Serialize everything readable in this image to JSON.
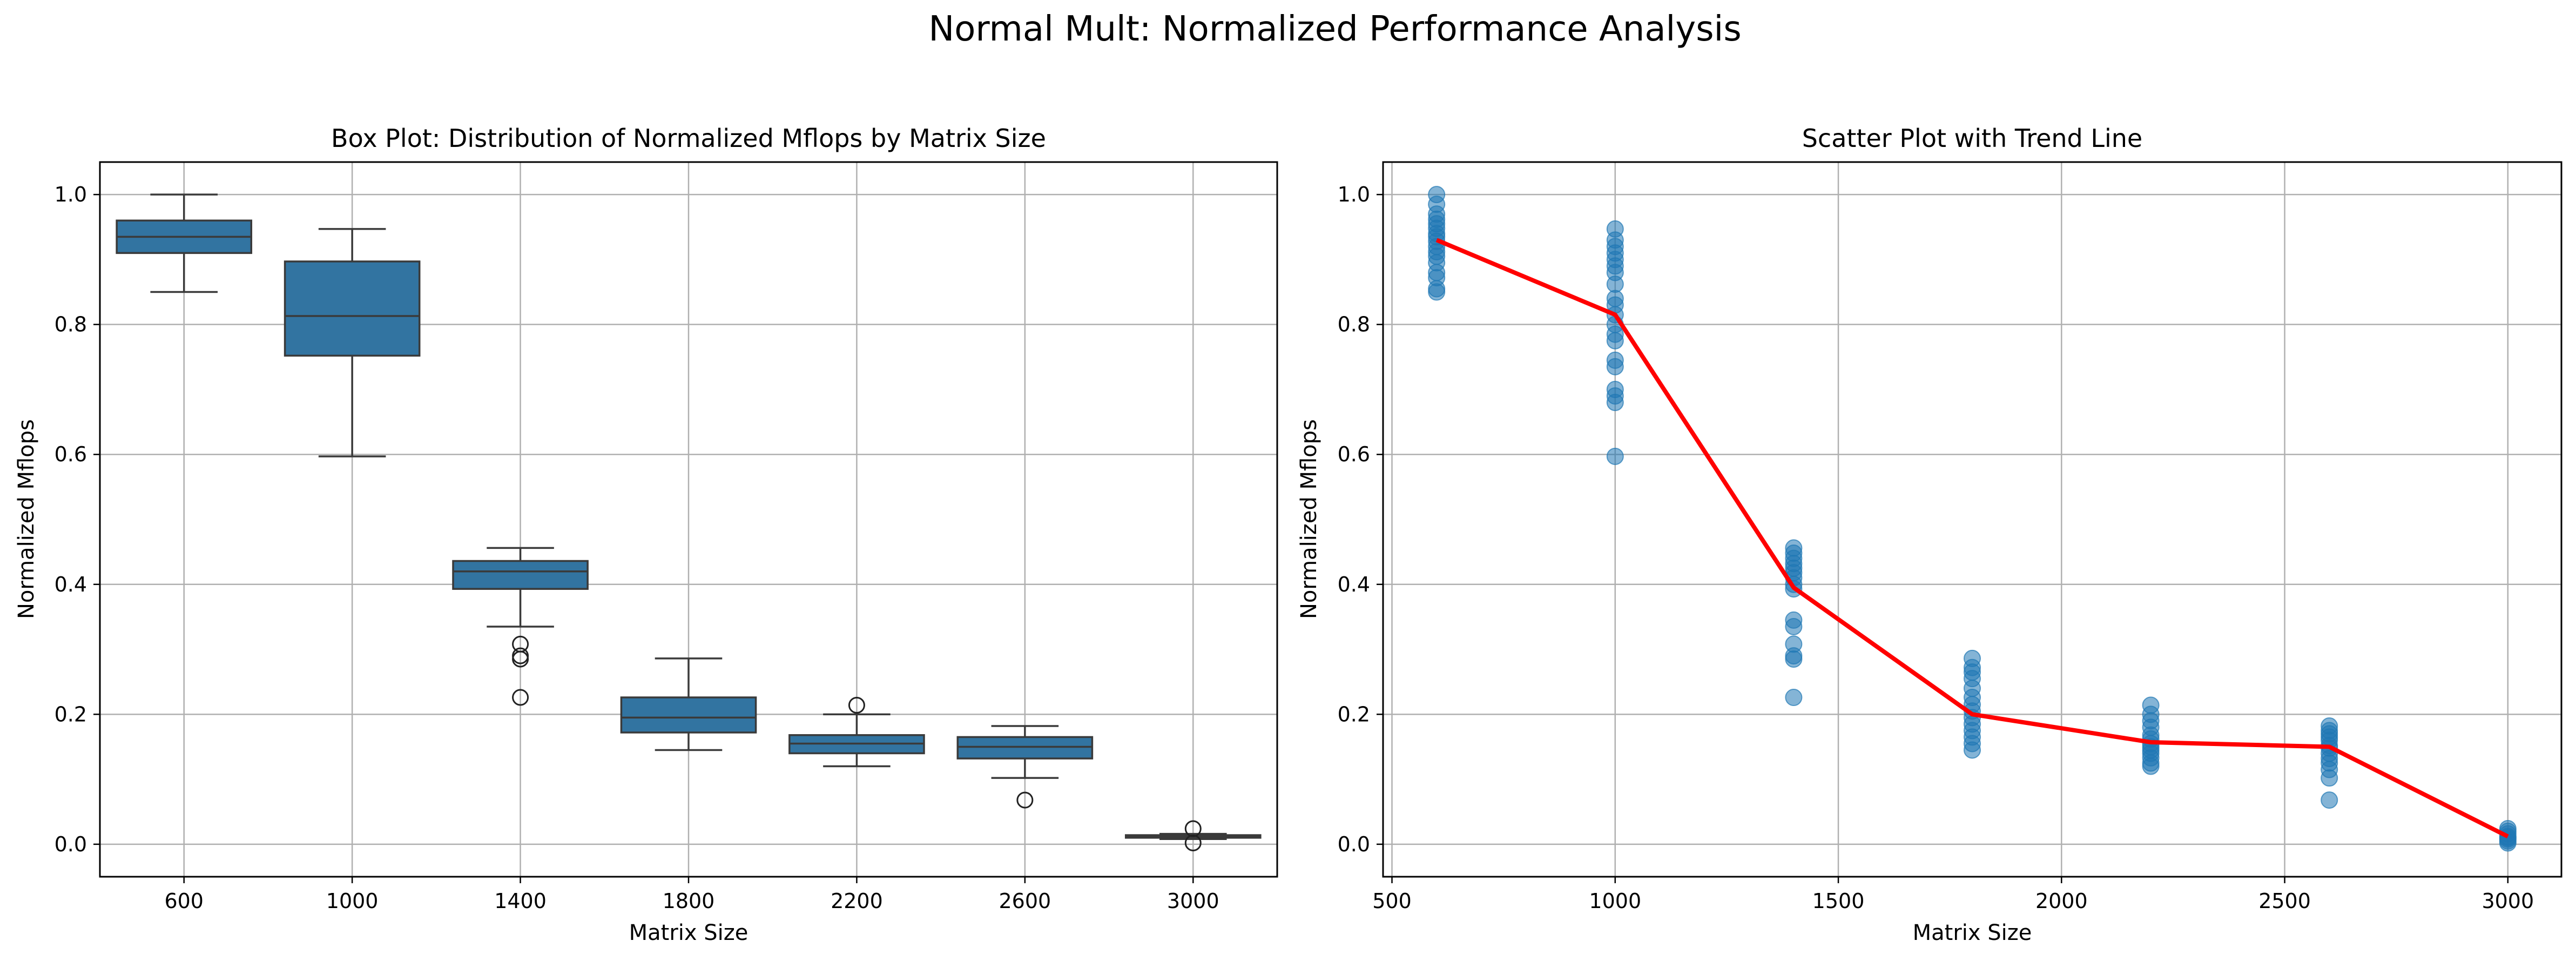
{
  "suptitle": "Normal Mult: Normalized Performance Analysis",
  "colors": {
    "box_fill": "#3274a1",
    "box_line": "#3a3a3a",
    "scatter_point": "#1f77b4",
    "trend_line": "#ff0000",
    "grid": "#b0b0b0"
  },
  "chart_data": [
    {
      "type": "box",
      "title": "Box Plot: Distribution of Normalized Mflops by Matrix Size",
      "xlabel": "Matrix Size",
      "ylabel": "Normalized Mflops",
      "ylim": [
        -0.05,
        1.05
      ],
      "yticks": [
        "0.0",
        "0.2",
        "0.4",
        "0.6",
        "0.8",
        "1.0"
      ],
      "grid": true,
      "categories": [
        "600",
        "1000",
        "1400",
        "1800",
        "2200",
        "2600",
        "3000"
      ],
      "boxes": [
        {
          "category": "600",
          "whisker_low": 0.85,
          "q1": 0.91,
          "median": 0.935,
          "q3": 0.96,
          "whisker_high": 1.0,
          "outliers": []
        },
        {
          "category": "1000",
          "whisker_low": 0.597,
          "q1": 0.752,
          "median": 0.813,
          "q3": 0.897,
          "whisker_high": 0.947,
          "outliers": []
        },
        {
          "category": "1400",
          "whisker_low": 0.335,
          "q1": 0.393,
          "median": 0.42,
          "q3": 0.436,
          "whisker_high": 0.456,
          "outliers": [
            0.308,
            0.29,
            0.285,
            0.226
          ]
        },
        {
          "category": "1800",
          "whisker_low": 0.145,
          "q1": 0.172,
          "median": 0.195,
          "q3": 0.226,
          "whisker_high": 0.286,
          "outliers": []
        },
        {
          "category": "2200",
          "whisker_low": 0.12,
          "q1": 0.14,
          "median": 0.155,
          "q3": 0.168,
          "whisker_high": 0.2,
          "outliers": [
            0.214
          ]
        },
        {
          "category": "2600",
          "whisker_low": 0.102,
          "q1": 0.132,
          "median": 0.15,
          "q3": 0.165,
          "whisker_high": 0.182,
          "outliers": [
            0.068
          ]
        },
        {
          "category": "3000",
          "whisker_low": 0.008,
          "q1": 0.01,
          "median": 0.012,
          "q3": 0.014,
          "whisker_high": 0.016,
          "outliers": [
            0.024,
            0.002
          ]
        }
      ]
    },
    {
      "type": "scatter",
      "title": "Scatter Plot with Trend Line",
      "xlabel": "Matrix Size",
      "ylabel": "Normalized Mflops",
      "xlim": [
        480,
        3120
      ],
      "ylim": [
        -0.05,
        1.05
      ],
      "xticks": [
        "500",
        "1000",
        "1500",
        "2000",
        "2500",
        "3000"
      ],
      "yticks": [
        "0.0",
        "0.2",
        "0.4",
        "0.6",
        "0.8",
        "1.0"
      ],
      "grid": true,
      "series": [
        {
          "kind": "points",
          "points": [
            [
              600,
              1.0
            ],
            [
              600,
              0.985
            ],
            [
              600,
              0.97
            ],
            [
              600,
              0.962
            ],
            [
              600,
              0.955
            ],
            [
              600,
              0.948
            ],
            [
              600,
              0.94
            ],
            [
              600,
              0.935
            ],
            [
              600,
              0.928
            ],
            [
              600,
              0.92
            ],
            [
              600,
              0.912
            ],
            [
              600,
              0.905
            ],
            [
              600,
              0.895
            ],
            [
              600,
              0.88
            ],
            [
              600,
              0.872
            ],
            [
              600,
              0.855
            ],
            [
              600,
              0.85
            ],
            [
              1000,
              0.947
            ],
            [
              1000,
              0.93
            ],
            [
              1000,
              0.92
            ],
            [
              1000,
              0.91
            ],
            [
              1000,
              0.9
            ],
            [
              1000,
              0.89
            ],
            [
              1000,
              0.88
            ],
            [
              1000,
              0.862
            ],
            [
              1000,
              0.84
            ],
            [
              1000,
              0.83
            ],
            [
              1000,
              0.815
            ],
            [
              1000,
              0.8
            ],
            [
              1000,
              0.785
            ],
            [
              1000,
              0.775
            ],
            [
              1000,
              0.745
            ],
            [
              1000,
              0.735
            ],
            [
              1000,
              0.7
            ],
            [
              1000,
              0.69
            ],
            [
              1000,
              0.68
            ],
            [
              1000,
              0.597
            ],
            [
              1400,
              0.456
            ],
            [
              1400,
              0.448
            ],
            [
              1400,
              0.44
            ],
            [
              1400,
              0.432
            ],
            [
              1400,
              0.425
            ],
            [
              1400,
              0.418
            ],
            [
              1400,
              0.41
            ],
            [
              1400,
              0.4
            ],
            [
              1400,
              0.393
            ],
            [
              1400,
              0.345
            ],
            [
              1400,
              0.335
            ],
            [
              1400,
              0.308
            ],
            [
              1400,
              0.29
            ],
            [
              1400,
              0.285
            ],
            [
              1400,
              0.226
            ],
            [
              1800,
              0.286
            ],
            [
              1800,
              0.272
            ],
            [
              1800,
              0.265
            ],
            [
              1800,
              0.255
            ],
            [
              1800,
              0.24
            ],
            [
              1800,
              0.226
            ],
            [
              1800,
              0.215
            ],
            [
              1800,
              0.205
            ],
            [
              1800,
              0.195
            ],
            [
              1800,
              0.185
            ],
            [
              1800,
              0.175
            ],
            [
              1800,
              0.165
            ],
            [
              1800,
              0.155
            ],
            [
              1800,
              0.145
            ],
            [
              2200,
              0.214
            ],
            [
              2200,
              0.2
            ],
            [
              2200,
              0.19
            ],
            [
              2200,
              0.18
            ],
            [
              2200,
              0.168
            ],
            [
              2200,
              0.162
            ],
            [
              2200,
              0.155
            ],
            [
              2200,
              0.15
            ],
            [
              2200,
              0.145
            ],
            [
              2200,
              0.14
            ],
            [
              2200,
              0.133
            ],
            [
              2200,
              0.125
            ],
            [
              2200,
              0.12
            ],
            [
              2600,
              0.182
            ],
            [
              2600,
              0.175
            ],
            [
              2600,
              0.17
            ],
            [
              2600,
              0.165
            ],
            [
              2600,
              0.16
            ],
            [
              2600,
              0.152
            ],
            [
              2600,
              0.148
            ],
            [
              2600,
              0.14
            ],
            [
              2600,
              0.132
            ],
            [
              2600,
              0.125
            ],
            [
              2600,
              0.115
            ],
            [
              2600,
              0.102
            ],
            [
              2600,
              0.068
            ],
            [
              3000,
              0.024
            ],
            [
              3000,
              0.02
            ],
            [
              3000,
              0.016
            ],
            [
              3000,
              0.012
            ],
            [
              3000,
              0.01
            ],
            [
              3000,
              0.008
            ],
            [
              3000,
              0.005
            ],
            [
              3000,
              0.002
            ]
          ]
        },
        {
          "kind": "trend",
          "x": [
            600,
            1000,
            1400,
            1800,
            2200,
            2600,
            3000
          ],
          "y": [
            0.93,
            0.815,
            0.395,
            0.2,
            0.157,
            0.15,
            0.012
          ]
        }
      ]
    }
  ]
}
